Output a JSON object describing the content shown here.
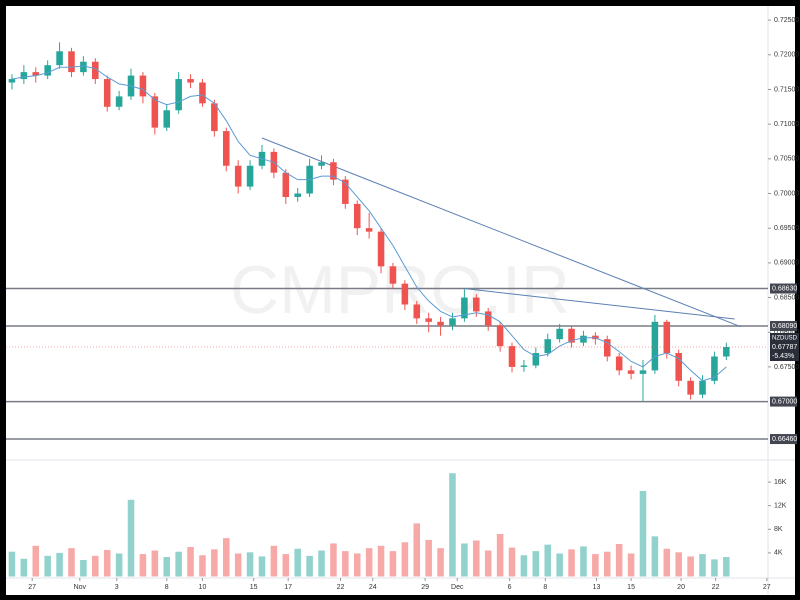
{
  "chart_data": {
    "type": "candlestick",
    "symbol": "NZDUSD",
    "watermark": "CMPRO.IR",
    "change_label": "-5.43%",
    "last_price": 0.67787,
    "x": [
      0,
      1,
      2,
      3,
      4,
      5,
      6,
      7,
      8,
      9,
      10,
      11,
      12,
      13,
      14,
      15,
      16,
      17,
      18,
      19,
      20,
      21,
      22,
      23,
      24,
      25,
      26,
      27,
      28,
      29,
      30,
      31,
      32,
      33,
      34,
      35,
      36,
      37,
      38,
      39,
      40,
      41,
      42,
      43,
      44,
      45,
      46,
      47,
      48,
      49,
      50,
      51,
      52,
      53,
      54,
      55,
      56,
      57,
      58,
      59,
      60
    ],
    "xlim": [
      -0.5,
      63.5
    ],
    "xticks": [
      {
        "value": 1.7,
        "label": "27"
      },
      {
        "value": 5.7,
        "label": "Nov"
      },
      {
        "value": 8.8,
        "label": "3"
      },
      {
        "value": 13,
        "label": "8"
      },
      {
        "value": 16,
        "label": "10"
      },
      {
        "value": 20.3,
        "label": "15"
      },
      {
        "value": 23.2,
        "label": "17"
      },
      {
        "value": 27.6,
        "label": "22"
      },
      {
        "value": 30.3,
        "label": "24"
      },
      {
        "value": 34.7,
        "label": "29"
      },
      {
        "value": 37.4,
        "label": "Dec"
      },
      {
        "value": 41.8,
        "label": "6"
      },
      {
        "value": 44.8,
        "label": "8"
      },
      {
        "value": 49.1,
        "label": "13"
      },
      {
        "value": 52,
        "label": "15"
      },
      {
        "value": 56.2,
        "label": "20"
      },
      {
        "value": 59.1,
        "label": "22"
      },
      {
        "value": 63.4,
        "label": "27"
      }
    ],
    "open": [
      0.716,
      0.7165,
      0.7175,
      0.717,
      0.7185,
      0.7205,
      0.7175,
      0.719,
      0.7165,
      0.7125,
      0.714,
      0.717,
      0.714,
      0.7095,
      0.712,
      0.7165,
      0.716,
      0.713,
      0.709,
      0.704,
      0.701,
      0.704,
      0.706,
      0.703,
      0.6995,
      0.7,
      0.704,
      0.7045,
      0.702,
      0.6985,
      0.695,
      0.6945,
      0.6895,
      0.687,
      0.684,
      0.682,
      0.6815,
      0.681,
      0.682,
      0.685,
      0.683,
      0.681,
      0.678,
      0.675,
      0.6752,
      0.677,
      0.679,
      0.6805,
      0.6785,
      0.6795,
      0.679,
      0.6765,
      0.6745,
      0.674,
      0.6745,
      0.6815,
      0.677,
      0.673,
      0.671,
      0.673,
      0.6765
    ],
    "high": [
      0.7172,
      0.7185,
      0.7182,
      0.7192,
      0.7218,
      0.721,
      0.7198,
      0.7195,
      0.717,
      0.7148,
      0.718,
      0.7175,
      0.7145,
      0.7128,
      0.7175,
      0.7172,
      0.7165,
      0.7135,
      0.7095,
      0.7048,
      0.7048,
      0.707,
      0.7065,
      0.7035,
      0.7008,
      0.705,
      0.7055,
      0.705,
      0.7025,
      0.699,
      0.6972,
      0.695,
      0.69,
      0.6875,
      0.6845,
      0.6828,
      0.6822,
      0.6828,
      0.6862,
      0.6855,
      0.6835,
      0.6815,
      0.6785,
      0.676,
      0.6778,
      0.6798,
      0.6812,
      0.681,
      0.6802,
      0.68,
      0.6795,
      0.677,
      0.6752,
      0.676,
      0.6825,
      0.6818,
      0.6775,
      0.6735,
      0.6738,
      0.6772,
      0.6785
    ],
    "low": [
      0.715,
      0.7158,
      0.716,
      0.7165,
      0.718,
      0.7168,
      0.717,
      0.7158,
      0.7118,
      0.712,
      0.7135,
      0.713,
      0.7085,
      0.709,
      0.7115,
      0.7152,
      0.7125,
      0.7082,
      0.7032,
      0.7,
      0.7005,
      0.7035,
      0.7022,
      0.6985,
      0.6988,
      0.6995,
      0.7035,
      0.7012,
      0.6978,
      0.694,
      0.6935,
      0.6885,
      0.6862,
      0.6832,
      0.6812,
      0.68,
      0.6795,
      0.6803,
      0.6815,
      0.6822,
      0.6802,
      0.6772,
      0.6742,
      0.6743,
      0.6748,
      0.6765,
      0.6785,
      0.6778,
      0.678,
      0.6782,
      0.6758,
      0.6738,
      0.6732,
      0.67,
      0.674,
      0.6762,
      0.6722,
      0.6703,
      0.6705,
      0.6725,
      0.676
    ],
    "close": [
      0.7165,
      0.7175,
      0.717,
      0.7185,
      0.7205,
      0.7175,
      0.719,
      0.7165,
      0.7125,
      0.714,
      0.717,
      0.714,
      0.7095,
      0.712,
      0.7165,
      0.716,
      0.713,
      0.709,
      0.704,
      0.701,
      0.704,
      0.706,
      0.703,
      0.6995,
      0.7,
      0.704,
      0.7045,
      0.702,
      0.6985,
      0.695,
      0.6945,
      0.6895,
      0.687,
      0.684,
      0.682,
      0.6815,
      0.681,
      0.682,
      0.685,
      0.683,
      0.681,
      0.678,
      0.675,
      0.6752,
      0.677,
      0.679,
      0.6805,
      0.6785,
      0.6795,
      0.679,
      0.6765,
      0.6745,
      0.674,
      0.6745,
      0.6815,
      0.677,
      0.673,
      0.671,
      0.673,
      0.6765,
      0.67787
    ],
    "up_color": "#26a69a",
    "down_color": "#ef5350",
    "ma": {
      "color": "#5b9bd5",
      "values": [
        0.7165,
        0.7168,
        0.717,
        0.7174,
        0.7182,
        0.7182,
        0.7184,
        0.718,
        0.7168,
        0.7158,
        0.7155,
        0.715,
        0.7135,
        0.7128,
        0.7132,
        0.714,
        0.7142,
        0.713,
        0.7105,
        0.7075,
        0.7055,
        0.705,
        0.7045,
        0.703,
        0.702,
        0.702,
        0.7025,
        0.7025,
        0.7015,
        0.6995,
        0.6975,
        0.695,
        0.6925,
        0.6895,
        0.6865,
        0.6845,
        0.683,
        0.6822,
        0.6825,
        0.6828,
        0.6825,
        0.6815,
        0.6795,
        0.6775,
        0.6765,
        0.6768,
        0.678,
        0.6788,
        0.6792,
        0.6792,
        0.6785,
        0.6772,
        0.6758,
        0.675,
        0.6765,
        0.677,
        0.6762,
        0.6745,
        0.673,
        0.6735,
        0.675
      ]
    },
    "ylim": [
      0.6623,
      0.7266
    ],
    "yticks": [
      {
        "value": 0.725,
        "label": "0.72500"
      },
      {
        "value": 0.72,
        "label": "0.72000"
      },
      {
        "value": 0.715,
        "label": "0.71500"
      },
      {
        "value": 0.71,
        "label": "0.71000"
      },
      {
        "value": 0.705,
        "label": "0.70500"
      },
      {
        "value": 0.7,
        "label": "0.70000"
      },
      {
        "value": 0.695,
        "label": "0.69500"
      },
      {
        "value": 0.69,
        "label": "0.69000"
      },
      {
        "value": 0.685,
        "label": "0.68500"
      },
      {
        "value": 0.68,
        "label": "0.68000"
      },
      {
        "value": 0.675,
        "label": "0.67500"
      }
    ],
    "levels": [
      {
        "value": 0.6863,
        "label": "0.68630"
      },
      {
        "value": 0.6809,
        "label": "0.68090"
      },
      {
        "value": 0.67,
        "label": "0.67000"
      },
      {
        "value": 0.6646,
        "label": "0.66460"
      }
    ],
    "level_color": "#787b86",
    "trendlines": [
      {
        "x": [
          21,
          61.2
        ],
        "y": [
          0.708,
          0.6808
        ]
      },
      {
        "x": [
          38,
          60.7
        ],
        "y": [
          0.6863,
          0.6819
        ]
      }
    ],
    "trendline_color": "#5b7fb5",
    "volume": {
      "values": [
        4200,
        3000,
        5200,
        3500,
        4000,
        4800,
        2800,
        3500,
        4500,
        3900,
        13000,
        3800,
        4400,
        3300,
        4200,
        5000,
        3600,
        4600,
        6500,
        3900,
        4100,
        3400,
        5200,
        3800,
        4700,
        3500,
        4400,
        5600,
        4300,
        3900,
        4800,
        5200,
        4300,
        5800,
        9000,
        6200,
        4800,
        17500,
        5600,
        6100,
        4400,
        7200,
        4900,
        3600,
        4300,
        5400,
        3900,
        4600,
        5100,
        3800,
        4200,
        5500,
        3900,
        14500,
        6800,
        4700,
        4100,
        3400,
        3800,
        2900,
        3300
      ],
      "ylim": [
        0,
        19400
      ],
      "yticks": [
        {
          "value": 16000,
          "label": "16K"
        },
        {
          "value": 12000,
          "label": "12K"
        },
        {
          "value": 8000,
          "label": "8K"
        },
        {
          "value": 4000,
          "label": "4K"
        }
      ]
    }
  }
}
